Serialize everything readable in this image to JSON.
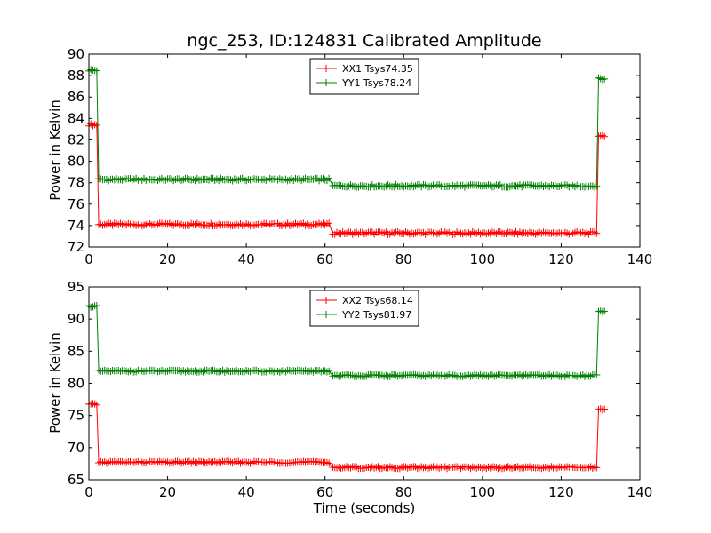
{
  "chart_data": [
    {
      "type": "line",
      "title": "ngc_253, ID:124831 Calibrated Amplitude",
      "xlabel": "",
      "ylabel": "Power in Kelvin",
      "xlim": [
        0,
        140
      ],
      "ylim": [
        72,
        90
      ],
      "xticks": [
        0,
        20,
        40,
        60,
        80,
        100,
        120,
        140
      ],
      "yticks": [
        72,
        74,
        76,
        78,
        80,
        82,
        84,
        86,
        88,
        90
      ],
      "grid": false,
      "legend_position": "top-center",
      "series": [
        {
          "name": "XX1 Tsys74.35",
          "color": "#ff0000",
          "segments": [
            {
              "x_start": 0,
              "x_end": 2,
              "value": 83.4,
              "jitter": 0.1
            },
            {
              "x_start": 2.5,
              "x_end": 61,
              "value": 74.1,
              "jitter": 0.12
            },
            {
              "x_start": 62,
              "x_end": 129,
              "value": 73.3,
              "jitter": 0.12
            },
            {
              "x_start": 129.5,
              "x_end": 131,
              "value": 82.4,
              "jitter": 0.1
            }
          ]
        },
        {
          "name": "YY1 Tsys78.24",
          "color": "#008000",
          "segments": [
            {
              "x_start": 0,
              "x_end": 2,
              "value": 88.5,
              "jitter": 0.1
            },
            {
              "x_start": 2.5,
              "x_end": 61,
              "value": 78.3,
              "jitter": 0.12
            },
            {
              "x_start": 62,
              "x_end": 129,
              "value": 77.7,
              "jitter": 0.12
            },
            {
              "x_start": 129.5,
              "x_end": 131,
              "value": 87.7,
              "jitter": 0.1
            }
          ]
        }
      ]
    },
    {
      "type": "line",
      "title": "",
      "xlabel": "Time (seconds)",
      "ylabel": "Power in Kelvin",
      "xlim": [
        0,
        140
      ],
      "ylim": [
        65,
        95
      ],
      "xticks": [
        0,
        20,
        40,
        60,
        80,
        100,
        120,
        140
      ],
      "yticks": [
        65,
        70,
        75,
        80,
        85,
        90,
        95
      ],
      "grid": false,
      "legend_position": "top-center",
      "series": [
        {
          "name": "XX2 Tsys68.14",
          "color": "#ff0000",
          "segments": [
            {
              "x_start": 0,
              "x_end": 2,
              "value": 76.7,
              "jitter": 0.15
            },
            {
              "x_start": 2.5,
              "x_end": 61,
              "value": 67.7,
              "jitter": 0.15
            },
            {
              "x_start": 62,
              "x_end": 129,
              "value": 66.9,
              "jitter": 0.15
            },
            {
              "x_start": 129.5,
              "x_end": 131,
              "value": 76.0,
              "jitter": 0.15
            }
          ]
        },
        {
          "name": "YY2 Tsys81.97",
          "color": "#008000",
          "segments": [
            {
              "x_start": 0,
              "x_end": 2,
              "value": 92.0,
              "jitter": 0.15
            },
            {
              "x_start": 2.5,
              "x_end": 61,
              "value": 81.9,
              "jitter": 0.15
            },
            {
              "x_start": 62,
              "x_end": 129,
              "value": 81.2,
              "jitter": 0.15
            },
            {
              "x_start": 129.5,
              "x_end": 131,
              "value": 91.2,
              "jitter": 0.15
            }
          ]
        }
      ]
    }
  ]
}
